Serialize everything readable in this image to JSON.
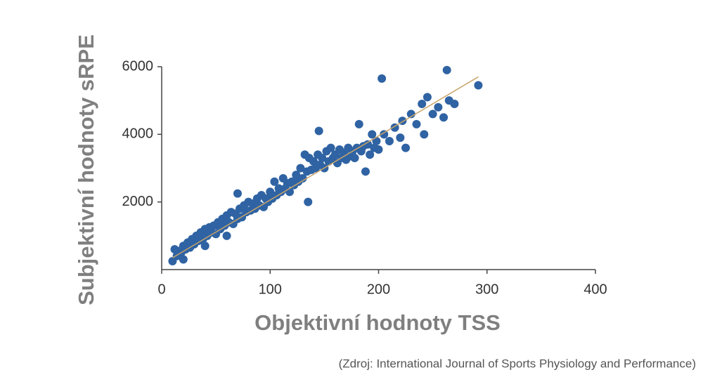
{
  "chart_data": {
    "type": "scatter",
    "xlabel": "Objektivní hodnoty TSS",
    "ylabel": "Subjektivní hodnoty sRPE",
    "source": "(Zdroj: International Journal of Sports Physiology and Performance)",
    "xlim": [
      0,
      400
    ],
    "ylim": [
      0,
      6000
    ],
    "xticks": [
      0,
      100,
      200,
      300,
      400
    ],
    "yticks": [
      2000,
      4000,
      6000
    ],
    "color": "#2f63a3",
    "x": [
      10,
      12,
      14,
      16,
      18,
      20,
      22,
      24,
      26,
      28,
      30,
      32,
      34,
      36,
      38,
      40,
      42,
      44,
      46,
      48,
      50,
      52,
      54,
      56,
      58,
      60,
      62,
      64,
      66,
      68,
      70,
      72,
      74,
      76,
      78,
      80,
      82,
      84,
      86,
      88,
      90,
      92,
      94,
      96,
      98,
      100,
      102,
      104,
      106,
      108,
      110,
      112,
      114,
      116,
      118,
      120,
      122,
      124,
      126,
      128,
      130,
      132,
      134,
      136,
      138,
      140,
      142,
      144,
      146,
      148,
      150,
      152,
      154,
      156,
      158,
      160,
      162,
      164,
      166,
      168,
      170,
      172,
      174,
      176,
      178,
      180,
      182,
      184,
      186,
      188,
      190,
      192,
      194,
      196,
      198,
      200,
      203,
      205,
      210,
      215,
      220,
      222,
      225,
      230,
      235,
      240,
      242,
      245,
      250,
      255,
      260,
      263,
      265,
      270,
      292,
      70,
      145,
      135,
      20,
      40,
      60
    ],
    "values": [
      250,
      600,
      400,
      550,
      500,
      700,
      600,
      800,
      650,
      900,
      750,
      1000,
      850,
      1100,
      900,
      1200,
      1000,
      1250,
      1100,
      1300,
      1050,
      1400,
      1200,
      1500,
      1300,
      1600,
      1400,
      1700,
      1350,
      1650,
      1500,
      1800,
      1550,
      1900,
      1700,
      2000,
      1750,
      1950,
      1800,
      2100,
      1900,
      2200,
      1850,
      2100,
      2000,
      2300,
      2100,
      2600,
      2200,
      2400,
      2300,
      2700,
      2400,
      2550,
      2300,
      2600,
      2500,
      2800,
      2600,
      3000,
      2700,
      3400,
      2900,
      3300,
      2950,
      3200,
      3000,
      3400,
      3100,
      3300,
      3000,
      3500,
      3200,
      3600,
      3300,
      3400,
      3150,
      3550,
      3300,
      3450,
      3250,
      3600,
      3350,
      3500,
      3300,
      3600,
      4300,
      3500,
      3650,
      2900,
      3700,
      3400,
      4000,
      3600,
      3800,
      3550,
      5650,
      4000,
      3800,
      4200,
      3900,
      4400,
      3600,
      4600,
      4300,
      4900,
      4000,
      5100,
      4600,
      4800,
      4500,
      5900,
      5000,
      4900,
      5450,
      2250,
      4100,
      2000,
      300,
      700,
      1000
    ],
    "trendline": {
      "x": [
        10,
        292
      ],
      "values": [
        350,
        5700
      ],
      "color": "#c9a46a"
    }
  }
}
